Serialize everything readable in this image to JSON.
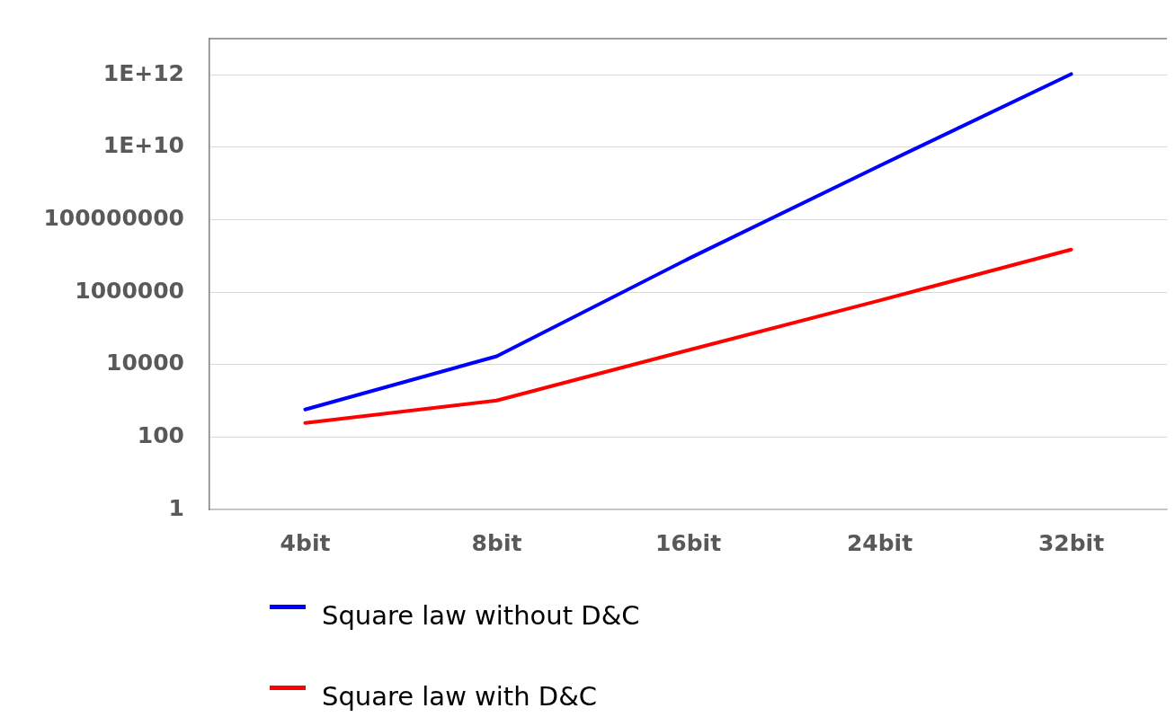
{
  "chart_data": {
    "type": "line",
    "categories": [
      "4bit",
      "8bit",
      "16bit",
      "24bit",
      "32bit"
    ],
    "series": [
      {
        "name": "Square law without D&C",
        "color": "#0000ff",
        "values": [
          575,
          17000,
          8300000,
          3100000000,
          1050000000000
        ]
      },
      {
        "name": "Square law with D&C",
        "color": "#ff0000",
        "values": [
          245,
          1020,
          25000,
          590000,
          15000000
        ]
      }
    ],
    "log": "y",
    "ylim": [
      1,
      10000000000000
    ],
    "yticks": [
      1,
      100,
      10000,
      1000000,
      100000000,
      {
        "value": 10000000000,
        "label": "1E+10"
      },
      {
        "value": 1000000000000,
        "label": "1E+12"
      }
    ],
    "grid": "y",
    "legend": "bottom",
    "marker": "none",
    "line_style": "solid"
  }
}
